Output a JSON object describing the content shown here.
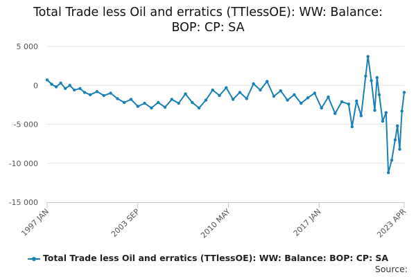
{
  "title_line1": "Total Trade less Oil and erratics (TTlessOE): WW: Balance:",
  "title_line2": "BOP: CP: SA",
  "source_label": "Source:",
  "colors": {
    "series": "#1a7fb5",
    "grid": "#e6e6e6",
    "axis": "#c0c8d8",
    "tick_text": "#555555"
  },
  "chart_data": {
    "type": "line",
    "title": "Total Trade less Oil and erratics (TTlessOE): WW: Balance: BOP: CP: SA",
    "xlabel": "",
    "ylabel": "",
    "x_range": [
      "1997 JAN",
      "2023 APR"
    ],
    "ylim": [
      -15000,
      5000
    ],
    "y_ticks": [
      5000,
      0,
      -5000,
      -10000,
      -15000
    ],
    "y_tick_labels": [
      "5 000",
      "0",
      "-5 000",
      "-10 000",
      "-15 000"
    ],
    "x_ticks": [
      "1997 JAN",
      "2003 SEP",
      "2010 MAY",
      "2017 JAN",
      "2023 APR"
    ],
    "grid": "horizontal",
    "legend_position": "bottom",
    "series": [
      {
        "name": "Total Trade less Oil and erratics (TTlessOE): WW: Balance: BOP: CP: SA",
        "points": [
          [
            "1997 JAN",
            700
          ],
          [
            "1997 MAY",
            150
          ],
          [
            "1997 SEP",
            -200
          ],
          [
            "1998 JAN",
            300
          ],
          [
            "1998 MAY",
            -400
          ],
          [
            "1998 SEP",
            0
          ],
          [
            "1999 JAN",
            -600
          ],
          [
            "1999 JUN",
            -400
          ],
          [
            "1999 OCT",
            -900
          ],
          [
            "2000 MAR",
            -1200
          ],
          [
            "2000 SEP",
            -800
          ],
          [
            "2001 MAR",
            -1300
          ],
          [
            "2001 SEP",
            -1000
          ],
          [
            "2002 MAR",
            -1700
          ],
          [
            "2002 SEP",
            -2200
          ],
          [
            "2003 MAR",
            -1800
          ],
          [
            "2003 SEP",
            -2700
          ],
          [
            "2004 MAR",
            -2300
          ],
          [
            "2004 SEP",
            -2900
          ],
          [
            "2005 MAR",
            -2200
          ],
          [
            "2005 SEP",
            -2800
          ],
          [
            "2006 MAR",
            -1800
          ],
          [
            "2006 SEP",
            -2300
          ],
          [
            "2007 MAR",
            -1100
          ],
          [
            "2007 SEP",
            -2200
          ],
          [
            "2008 MAR",
            -2900
          ],
          [
            "2008 SEP",
            -1900
          ],
          [
            "2009 MAR",
            -600
          ],
          [
            "2009 SEP",
            -1300
          ],
          [
            "2010 MAR",
            -300
          ],
          [
            "2010 SEP",
            -1800
          ],
          [
            "2011 MAR",
            -900
          ],
          [
            "2011 SEP",
            -1700
          ],
          [
            "2012 MAR",
            200
          ],
          [
            "2012 SEP",
            -600
          ],
          [
            "2013 MAR",
            500
          ],
          [
            "2013 SEP",
            -1400
          ],
          [
            "2014 MAR",
            -700
          ],
          [
            "2014 SEP",
            -1900
          ],
          [
            "2015 MAR",
            -1200
          ],
          [
            "2015 SEP",
            -2300
          ],
          [
            "2016 MAR",
            -1600
          ],
          [
            "2016 SEP",
            -1000
          ],
          [
            "2017 MAR",
            -2900
          ],
          [
            "2017 SEP",
            -1500
          ],
          [
            "2018 MAR",
            -3600
          ],
          [
            "2018 SEP",
            -2100
          ],
          [
            "2019 MAR",
            -2400
          ],
          [
            "2019 JUN",
            -5300
          ],
          [
            "2019 OCT",
            -2000
          ],
          [
            "2020 FEB",
            -3900
          ],
          [
            "2020 JUN",
            1200
          ],
          [
            "2020 AUG",
            3700
          ],
          [
            "2020 NOV",
            600
          ],
          [
            "2021 FEB",
            -3200
          ],
          [
            "2021 APR",
            1000
          ],
          [
            "2021 JUN",
            -1200
          ],
          [
            "2021 SEP",
            -4600
          ],
          [
            "2021 DEC",
            -3500
          ],
          [
            "2022 FEB",
            -11200
          ],
          [
            "2022 MAY",
            -9600
          ],
          [
            "2022 AUG",
            -7000
          ],
          [
            "2022 OCT",
            -5200
          ],
          [
            "2022 DEC",
            -8200
          ],
          [
            "2023 FEB",
            -3300
          ],
          [
            "2023 APR",
            -900
          ]
        ]
      }
    ]
  }
}
